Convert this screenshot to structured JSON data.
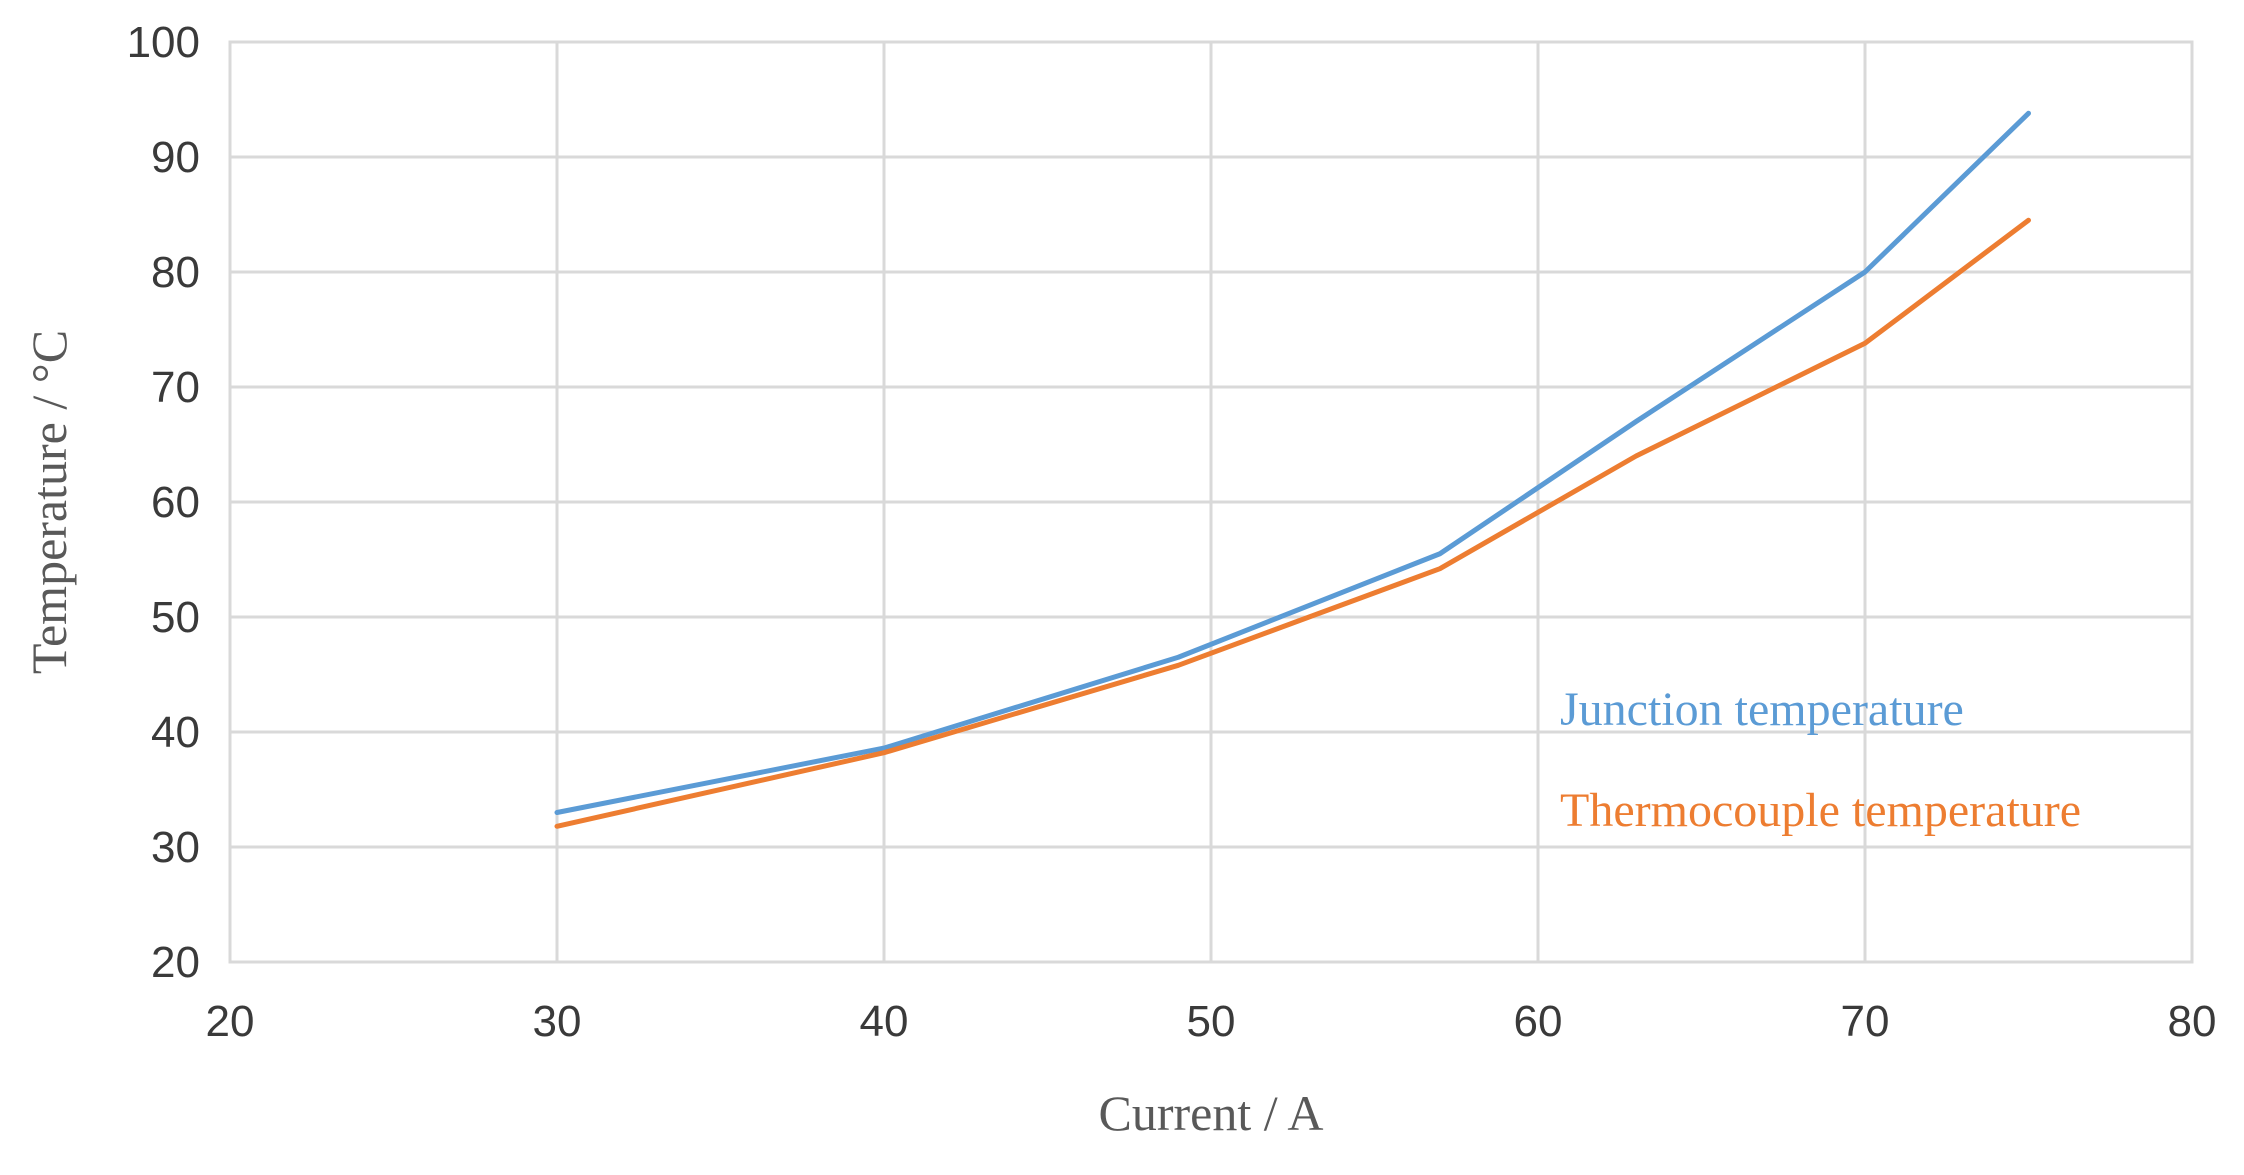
{
  "chart_data": {
    "type": "line",
    "title": "",
    "xlabel": "Current / A",
    "ylabel": "Temperature / °C",
    "xlim": [
      20,
      80
    ],
    "ylim": [
      20,
      100
    ],
    "xticks": [
      20,
      30,
      40,
      50,
      60,
      70,
      80
    ],
    "yticks": [
      20,
      30,
      40,
      50,
      60,
      70,
      80,
      90,
      100
    ],
    "grid": true,
    "legend_placement": "lower-right inside plot",
    "series": [
      {
        "name": "Junction temperature",
        "color": "#5b9bd5",
        "x": [
          30,
          40,
          49,
          57,
          63,
          70,
          75
        ],
        "y": [
          33,
          38.6,
          46.5,
          55.5,
          67,
          80,
          93.8
        ]
      },
      {
        "name": "Thermocouple temperature",
        "color": "#ed7d31",
        "x": [
          30,
          40,
          49,
          57,
          63,
          70,
          75
        ],
        "y": [
          31.8,
          38.2,
          45.8,
          54.2,
          64,
          73.8,
          84.5
        ]
      }
    ]
  }
}
